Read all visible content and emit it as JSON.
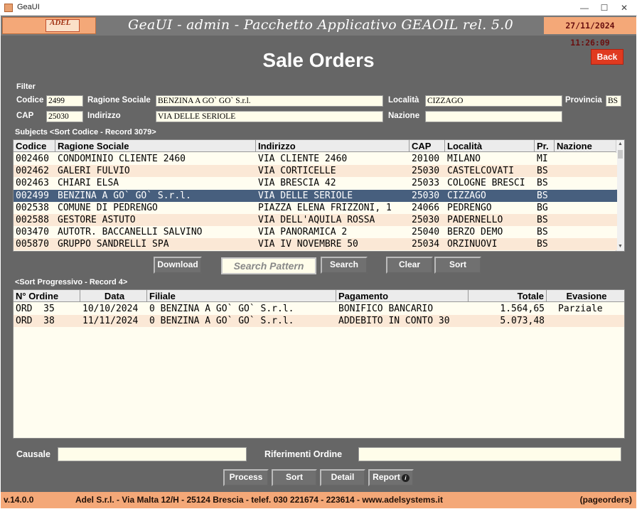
{
  "window": {
    "title": "GeaUI",
    "min_icon": "minimize-icon",
    "max_icon": "maximize-icon",
    "close_icon": "close-icon"
  },
  "header": {
    "logo_text": "ADEL",
    "title": "GeaUI - admin - Pacchetto Applicativo GEAOIL rel. 5.0",
    "datetime": "27/11/2024 11:26:09"
  },
  "page": {
    "title": "Sale Orders",
    "back_label": "Back"
  },
  "filter": {
    "label": "Filter",
    "codice_label": "Codice",
    "codice_value": "2499",
    "ragione_label": "Ragione Sociale",
    "ragione_value": "BENZINA A GO` GO` S.r.l.",
    "localita_label": "Località",
    "localita_value": "CIZZAGO",
    "provincia_label": "Provincia",
    "provincia_value": "BS",
    "cap_label": "CAP",
    "cap_value": "25030",
    "indirizzo_label": "Indirizzo",
    "indirizzo_value": "VIA DELLE SERIOLE",
    "nazione_label": "Nazione",
    "nazione_value": ""
  },
  "subjects": {
    "label": "Subjects <Sort Codice - Record 3079>",
    "columns": [
      "Codice",
      "Ragione Sociale",
      "Indirizzo",
      "CAP",
      "Località",
      "Pr.",
      "Nazione"
    ],
    "rows": [
      [
        "002460",
        "CONDOMINIO CLIENTE 2460",
        "VIA CLIENTE 2460",
        "20100",
        "MILANO",
        "MI",
        ""
      ],
      [
        "002462",
        "GALERI FULVIO",
        "VIA CORTICELLE",
        "25030",
        "CASTELCOVATI",
        "BS",
        ""
      ],
      [
        "002463",
        "CHIARI ELSA",
        "VIA BRESCIA 42",
        "25033",
        "COLOGNE BRESCI",
        "BS",
        ""
      ],
      [
        "002499",
        "BENZINA A GO` GO` S.r.l.",
        "VIA DELLE SERIOLE",
        "25030",
        "CIZZAGO",
        "BS",
        ""
      ],
      [
        "002538",
        "COMUNE DI PEDRENGO",
        "PIAZZA ELENA FRIZZONI, 1",
        "24066",
        "PEDRENGO",
        "BG",
        ""
      ],
      [
        "002588",
        "GESTORE ASTUTO",
        "VIA DELL'AQUILA ROSSA",
        "25030",
        "PADERNELLO",
        "BS",
        ""
      ],
      [
        "003470",
        "AUTOTR. BACCANELLI SALVINO",
        "VIA PANORAMICA 2",
        "25040",
        "BERZO DEMO",
        "BS",
        ""
      ],
      [
        "005870",
        "GRUPPO SANDRELLI SPA",
        "VIA IV NOVEMBRE 50",
        "25034",
        "ORZINUOVI",
        "BS",
        ""
      ]
    ],
    "selected_index": 3
  },
  "subject_buttons": {
    "download": "Download",
    "search_pattern": "Search Pattern",
    "search": "Search",
    "clear": "Clear",
    "sort": "Sort"
  },
  "orders": {
    "label": "<Sort Progressivo - Record 4>",
    "columns": [
      "N° Ordine",
      "Data",
      "Filiale",
      "Pagamento",
      "Totale",
      "Evasione"
    ],
    "rows": [
      [
        "ORD  35",
        "10/10/2024",
        "0 BENZINA A GO` GO` S.r.l.",
        "BONIFICO BANCARIO",
        "1.564,65",
        "Parziale"
      ],
      [
        "ORD  38",
        "11/11/2024",
        "0 BENZINA A GO` GO` S.r.l.",
        "ADDEBITO IN CONTO 30",
        "5.073,48",
        ""
      ]
    ]
  },
  "bottom": {
    "causale_label": "Causale",
    "causale_value": "",
    "riferimenti_label": "Riferimenti Ordine",
    "riferimenti_value": ""
  },
  "actions": {
    "process": "Process",
    "sort": "Sort",
    "detail": "Detail",
    "report": "Report",
    "report_icon": "info-icon"
  },
  "footer": {
    "version": "v.14.0.0",
    "address": "Adel S.r.l. - Via Malta 12/H - 25124 Brescia - telef. 030 221674 - 223614 - www.adelsystems.it",
    "page_code": "(pageorders)"
  },
  "colors": {
    "background": "#666666",
    "accent": "#f4a878",
    "selected_row": "#475f7e",
    "back_button": "#e03a20"
  }
}
